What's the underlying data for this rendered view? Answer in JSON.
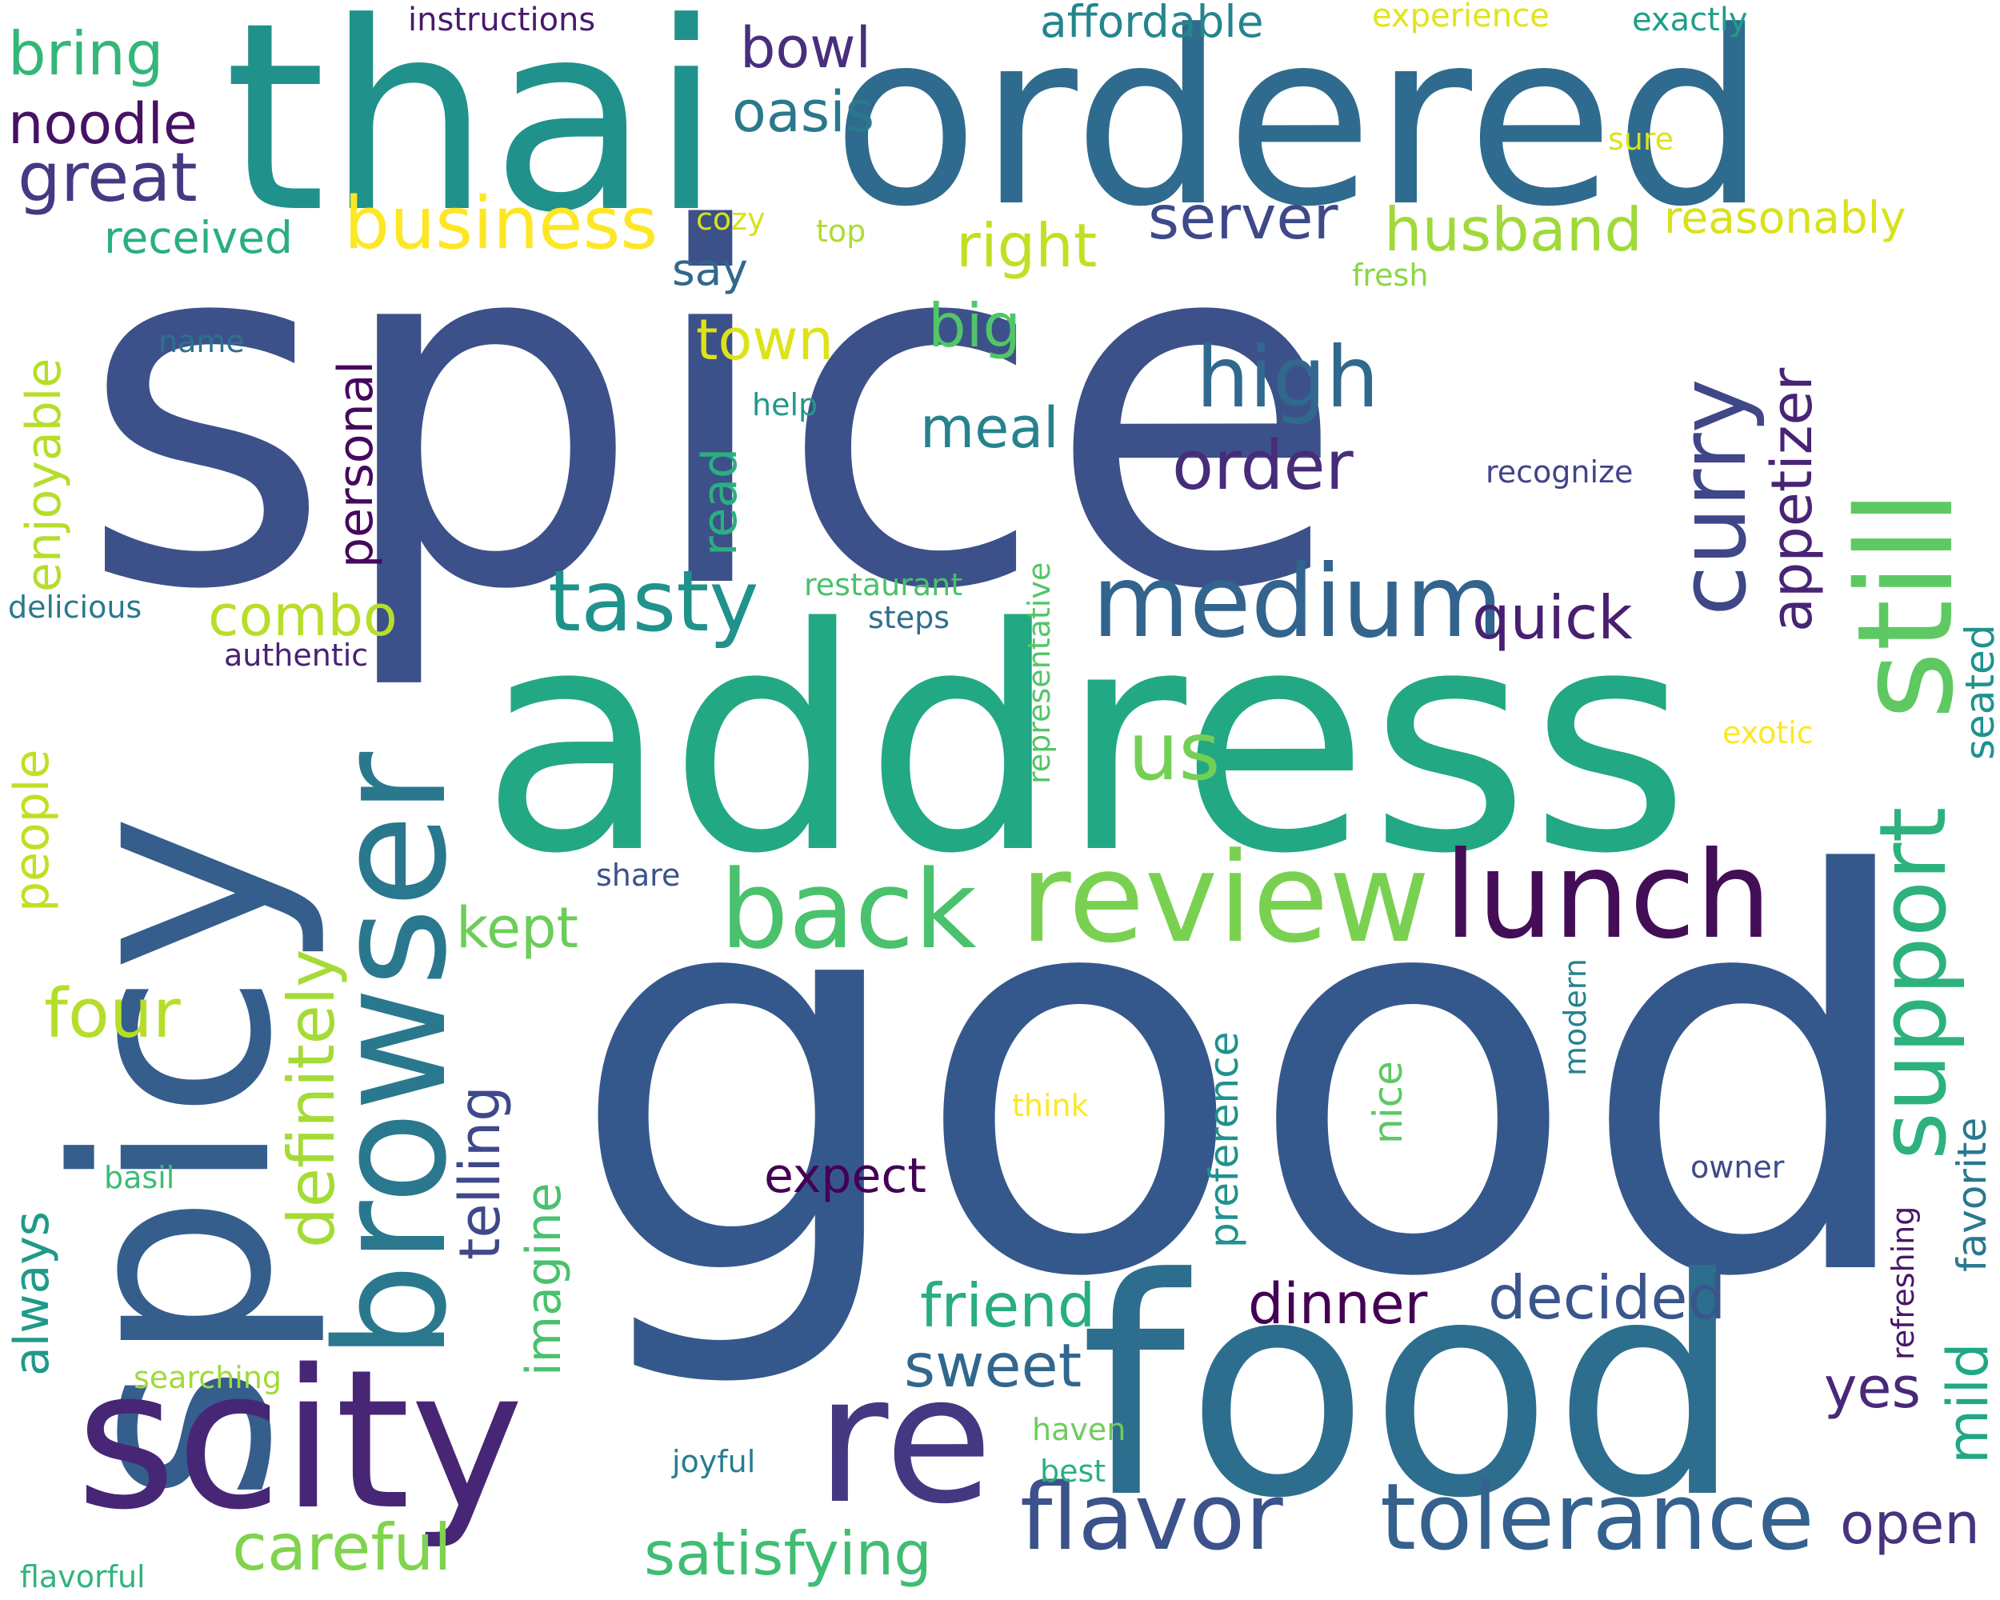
{
  "words": [
    {
      "text": "spice",
      "color": "#3c5189"
    },
    {
      "text": "good",
      "color": "#35588c"
    },
    {
      "text": "address",
      "color": "#23a884"
    },
    {
      "text": "spicy",
      "color": "#355e8d"
    },
    {
      "text": "food",
      "color": "#2d6e8e"
    },
    {
      "text": "thai",
      "color": "#21918c"
    },
    {
      "text": "ordered",
      "color": "#2f6b8e"
    },
    {
      "text": "scity",
      "color": "#482676"
    },
    {
      "text": "re",
      "color": "#453883"
    },
    {
      "text": "browser",
      "color": "#2a788e"
    },
    {
      "text": "still",
      "color": "#5ec962"
    },
    {
      "text": "review",
      "color": "#7ad151"
    },
    {
      "text": "lunch",
      "color": "#440e57"
    },
    {
      "text": "back",
      "color": "#4ac16d"
    },
    {
      "text": "medium",
      "color": "#32648e"
    },
    {
      "text": "support",
      "color": "#2db27d"
    },
    {
      "text": "tolerance",
      "color": "#34618d"
    },
    {
      "text": "flavor",
      "color": "#3b528b"
    },
    {
      "text": "curry",
      "color": "#3f4788"
    },
    {
      "text": "tasty",
      "color": "#20928c"
    },
    {
      "text": "high",
      "color": "#30688e"
    },
    {
      "text": "business",
      "color": "#fde725"
    },
    {
      "text": "definitely",
      "color": "#a5db36"
    },
    {
      "text": "us",
      "color": "#74d055"
    },
    {
      "text": "order",
      "color": "#472c7a"
    },
    {
      "text": "great",
      "color": "#443a83"
    },
    {
      "text": "four",
      "color": "#b5de2b"
    },
    {
      "text": "careful",
      "color": "#7fd34e"
    },
    {
      "text": "satisfying",
      "color": "#40bd72"
    },
    {
      "text": "friend",
      "color": "#28ae80"
    },
    {
      "text": "decided",
      "color": "#39568c"
    },
    {
      "text": "dinner",
      "color": "#440154"
    },
    {
      "text": "sweet",
      "color": "#31678e"
    },
    {
      "text": "husband",
      "color": "#9fda3a"
    },
    {
      "text": "server",
      "color": "#3e4989"
    },
    {
      "text": "right",
      "color": "#c2df23"
    },
    {
      "text": "quick",
      "color": "#481f71"
    },
    {
      "text": "appetizer",
      "color": "#482475"
    },
    {
      "text": "mild",
      "color": "#22a785"
    },
    {
      "text": "open",
      "color": "#46327e"
    },
    {
      "text": "yes",
      "color": "#482878"
    },
    {
      "text": "bring",
      "color": "#34b679"
    },
    {
      "text": "noodle",
      "color": "#471164"
    },
    {
      "text": "oasis",
      "color": "#2a788e"
    },
    {
      "text": "bowl",
      "color": "#472f7d"
    },
    {
      "text": "meal",
      "color": "#26828e"
    },
    {
      "text": "big",
      "color": "#52c569"
    },
    {
      "text": "town",
      "color": "#dde318"
    },
    {
      "text": "combo",
      "color": "#b8de29"
    },
    {
      "text": "kept",
      "color": "#6ccd5a"
    },
    {
      "text": "telling",
      "color": "#3f4889"
    },
    {
      "text": "imagine",
      "color": "#4ac16d"
    },
    {
      "text": "always",
      "color": "#1f9a8a"
    },
    {
      "text": "people",
      "color": "#c2df23"
    },
    {
      "text": "enjoyable",
      "color": "#b5de2b"
    },
    {
      "text": "personal",
      "color": "#46085c"
    },
    {
      "text": "read",
      "color": "#2ab07f"
    },
    {
      "text": "expect",
      "color": "#440154"
    },
    {
      "text": "affordable",
      "color": "#25858e"
    },
    {
      "text": "received",
      "color": "#29af7f"
    },
    {
      "text": "reasonably",
      "color": "#d8e219"
    },
    {
      "text": "say",
      "color": "#31678e"
    },
    {
      "text": "preference",
      "color": "#21918c"
    },
    {
      "text": "nice",
      "color": "#5ec962"
    },
    {
      "text": "favorite",
      "color": "#2a788e"
    },
    {
      "text": "seated",
      "color": "#20928c"
    },
    {
      "text": "instructions",
      "color": "#481b6d"
    },
    {
      "text": "experience",
      "color": "#e2e418"
    },
    {
      "text": "exactly",
      "color": "#1f9e89"
    },
    {
      "text": "sure",
      "color": "#dde318"
    },
    {
      "text": "cozy",
      "color": "#d8e219"
    },
    {
      "text": "top",
      "color": "#addc30"
    },
    {
      "text": "fresh",
      "color": "#8bd646"
    },
    {
      "text": "name",
      "color": "#2d718e"
    },
    {
      "text": "help",
      "color": "#1f988b"
    },
    {
      "text": "recognize",
      "color": "#414487"
    },
    {
      "text": "delicious",
      "color": "#2a788e"
    },
    {
      "text": "restaurant",
      "color": "#4ac16d"
    },
    {
      "text": "steps",
      "color": "#2e6f8e"
    },
    {
      "text": "authentic",
      "color": "#482173"
    },
    {
      "text": "representative",
      "color": "#54c568"
    },
    {
      "text": "exotic",
      "color": "#fde725"
    },
    {
      "text": "share",
      "color": "#3b528b"
    },
    {
      "text": "modern",
      "color": "#26828e"
    },
    {
      "text": "think",
      "color": "#fde725"
    },
    {
      "text": "owner",
      "color": "#3e4a89"
    },
    {
      "text": "refreshing",
      "color": "#481769"
    },
    {
      "text": "basil",
      "color": "#3dbc74"
    },
    {
      "text": "searching",
      "color": "#a0da39"
    },
    {
      "text": "haven",
      "color": "#6ccd5a"
    },
    {
      "text": "best",
      "color": "#2ab07f"
    },
    {
      "text": "joyful",
      "color": "#287c8e"
    },
    {
      "text": "flavorful",
      "color": "#31b57b"
    }
  ]
}
